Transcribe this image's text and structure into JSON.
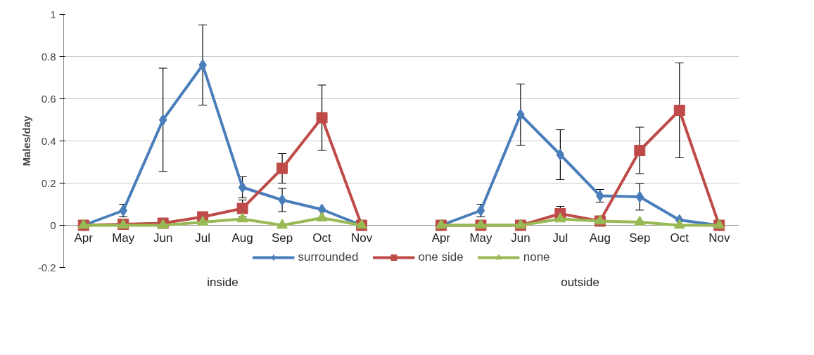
{
  "chart_data": {
    "type": "line",
    "ylabel": "Males/day",
    "categories": [
      "Apr",
      "May",
      "Jun",
      "Jul",
      "Aug",
      "Sep",
      "Oct",
      "Nov",
      null,
      "Apr",
      "May",
      "Jun",
      "Jul",
      "Aug",
      "Sep",
      "Oct",
      "Nov"
    ],
    "annotations": [
      "inside",
      "outside"
    ],
    "ylim": [
      -0.2,
      1
    ],
    "yticks": [
      -0.2,
      0,
      0.2,
      0.4,
      0.6,
      0.8,
      1
    ],
    "grid": "y",
    "legend": "bottom",
    "series": [
      {
        "name": "surrounded",
        "color": "#4a7ebb",
        "marker": "diamond",
        "values": [
          0,
          0.07,
          0.5,
          0.76,
          0.18,
          0.12,
          0.075,
          0,
          null,
          0,
          0.07,
          0.525,
          0.335,
          0.14,
          0.135,
          0.025,
          0
        ],
        "errors": [
          null,
          0.03,
          0.245,
          0.19,
          0.05,
          0.055,
          null,
          null,
          null,
          null,
          0.03,
          0.145,
          0.118,
          0.03,
          0.063,
          null,
          null
        ]
      },
      {
        "name": "one side",
        "color": "#be4b48",
        "marker": "square",
        "values": [
          0,
          0.005,
          0.01,
          0.04,
          0.08,
          0.27,
          0.51,
          0,
          null,
          0,
          0,
          0,
          0.055,
          0.02,
          0.355,
          0.545,
          0
        ],
        "errors": [
          null,
          null,
          null,
          null,
          0.04,
          0.07,
          0.155,
          null,
          null,
          null,
          null,
          null,
          0.035,
          null,
          0.11,
          0.225,
          null
        ]
      },
      {
        "name": "none",
        "color": "#98b954",
        "marker": "triangle",
        "values": [
          0,
          0,
          0,
          0.015,
          0.03,
          0,
          0.035,
          0,
          null,
          0,
          0,
          0,
          0.03,
          0.02,
          0.015,
          0,
          0
        ]
      }
    ]
  }
}
